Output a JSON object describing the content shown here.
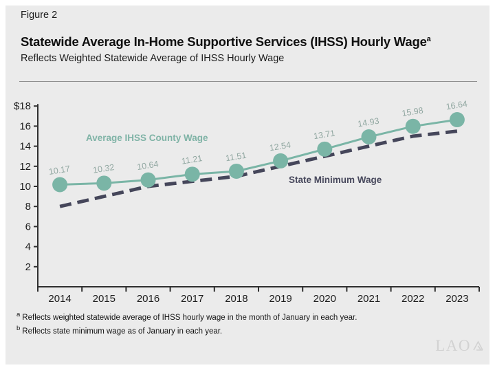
{
  "figure": {
    "label": "Figure 2",
    "title": "Statewide Average In-Home Supportive Services (IHSS) Hourly Wage",
    "title_superscript": "a",
    "subtitle": "Reflects Weighted Statewide Average of IHSS Hourly Wage"
  },
  "chart_data": {
    "type": "line",
    "title": "Statewide Average In-Home Supportive Services (IHSS) Hourly Wage",
    "subtitle": "Reflects Weighted Statewide Average of IHSS Hourly Wage",
    "categories": [
      2014,
      2015,
      2016,
      2017,
      2018,
      2019,
      2020,
      2021,
      2022,
      2023
    ],
    "series": [
      {
        "name": "Average IHSS County Wage",
        "values": [
          10.17,
          10.32,
          10.64,
          11.21,
          11.51,
          12.54,
          13.71,
          14.93,
          15.98,
          16.64
        ],
        "color": "#7ab5a6",
        "label_color": "#7fb3a6",
        "style": "solid-markers",
        "labels_shown": true
      },
      {
        "name": "State Minimum Wage",
        "values": [
          8.0,
          9.0,
          10.0,
          10.5,
          11.0,
          12.0,
          13.0,
          14.0,
          15.0,
          15.5
        ],
        "color": "#45465a",
        "label_color": "#47485c",
        "style": "dashed",
        "labels_shown": false
      }
    ],
    "xlabel": "",
    "ylabel": "",
    "ylim": [
      0,
      18
    ],
    "ytick_step": 2,
    "ytick_prefix_top": "$",
    "grid": false,
    "legend": "inline-labels"
  },
  "footnotes": [
    {
      "marker": "a",
      "text": "Reflects weighted statewide average of IHSS hourly wage in the month of January in each year."
    },
    {
      "marker": "b",
      "text": "Reflects state minimum wage as of January in each year."
    }
  ],
  "logo": {
    "text": "LAO"
  },
  "colors": {
    "page_bg": "#ffffff",
    "panel_bg": "#ebebeb",
    "rule": "#8f8f8f",
    "axis": "#2e2e2e",
    "axis_text": "#1d1d1d",
    "data_label": "#92a8a2",
    "logo": "#d2d2d2"
  }
}
